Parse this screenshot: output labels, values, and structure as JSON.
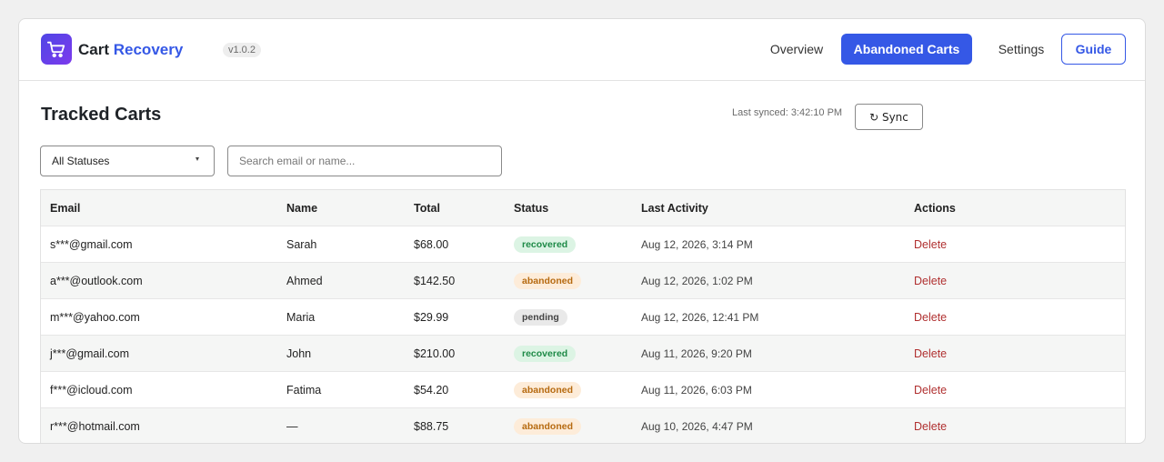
{
  "header": {
    "logo_icon": "shopping-cart-icon",
    "brand_name": "Cart",
    "brand_accent": "Recovery",
    "version": "v1.0.2",
    "nav": [
      {
        "label": "Overview"
      },
      {
        "label": "Abandoned Carts"
      },
      {
        "label": "Settings"
      },
      {
        "label": "Guide"
      }
    ],
    "active_nav": "Abandoned Carts",
    "accent_color": "#3558e6"
  },
  "main": {
    "title": "Tracked Carts",
    "last_synced": "Last synced: 3:42:10 PM",
    "sync_label": "↻ Sync",
    "filter": {
      "selected": "All Statuses"
    },
    "search": {
      "value": "",
      "placeholder": "Search email or name..."
    }
  },
  "table": {
    "columns": [
      "Email",
      "Name",
      "Total",
      "Status",
      "Last Activity",
      "Actions"
    ],
    "rows": [
      {
        "email": "s***@gmail.com",
        "name": "Sarah",
        "total": "$68.00",
        "status": "recovered",
        "activity": "Aug 12, 2026, 3:14 PM",
        "action": "Delete"
      },
      {
        "email": "a***@outlook.com",
        "name": "Ahmed",
        "total": "$142.50",
        "status": "abandoned",
        "activity": "Aug 12, 2026, 1:02 PM",
        "action": "Delete"
      },
      {
        "email": "m***@yahoo.com",
        "name": "Maria",
        "total": "$29.99",
        "status": "pending",
        "activity": "Aug 12, 2026, 12:41 PM",
        "action": "Delete"
      },
      {
        "email": "j***@gmail.com",
        "name": "John",
        "total": "$210.00",
        "status": "recovered",
        "activity": "Aug 11, 2026, 9:20 PM",
        "action": "Delete"
      },
      {
        "email": "f***@icloud.com",
        "name": "Fatima",
        "total": "$54.20",
        "status": "abandoned",
        "activity": "Aug 11, 2026, 6:03 PM",
        "action": "Delete"
      },
      {
        "email": "r***@hotmail.com",
        "name": "—",
        "total": "$88.75",
        "status": "abandoned",
        "activity": "Aug 10, 2026, 4:47 PM",
        "action": "Delete"
      }
    ]
  }
}
